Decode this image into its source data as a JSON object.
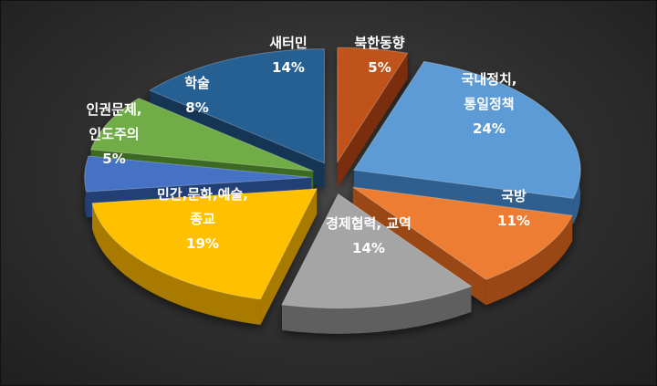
{
  "chart_data": {
    "type": "pie",
    "title": "",
    "slices": [
      {
        "label": [
          "북한동향"
        ],
        "value_label": "5%",
        "value": 5,
        "color": "#c0531e",
        "side": "#7a2e0c"
      },
      {
        "label": [
          "국내정치,",
          "통일정책"
        ],
        "value_label": "24%",
        "value": 24,
        "color": "#5b9bd5",
        "side": "#2f5f8f"
      },
      {
        "label": [
          "국방"
        ],
        "value_label": "11%",
        "value": 11,
        "color": "#ed7d31",
        "side": "#9a4614"
      },
      {
        "label": [
          "경제협력, 교역"
        ],
        "value_label": "14%",
        "value": 14,
        "color": "#a5a5a5",
        "side": "#5e5e5e"
      },
      {
        "label": [
          "민간,문화,예술,",
          "종교"
        ],
        "value_label": "19%",
        "value": 19,
        "color": "#ffc000",
        "side": "#a87a00"
      },
      {
        "label": [
          "인권문제,",
          "인도주의"
        ],
        "value_label": "5%",
        "value": 5,
        "color": "#4472c4",
        "side": "#233f75"
      },
      {
        "label": [
          "학술"
        ],
        "value_label": "8%",
        "value": 8,
        "color": "#70ad47",
        "side": "#3d6a22"
      },
      {
        "label": [
          "새터민"
        ],
        "value_label": "14%",
        "value": 14,
        "color": "#255e91",
        "side": "#123455"
      }
    ]
  }
}
